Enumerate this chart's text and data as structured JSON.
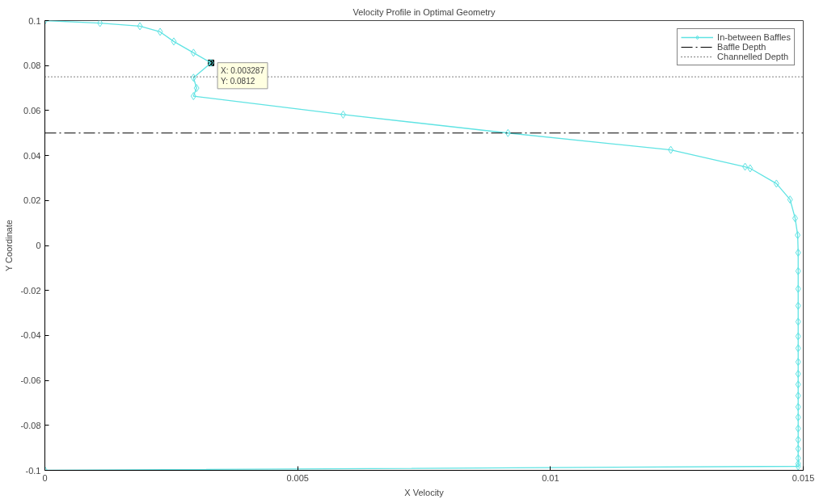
{
  "chart_data": {
    "type": "line",
    "title": "Velocity Profile in Optimal Geometry",
    "xlabel": "X Velocity",
    "ylabel": "Y Coordinate",
    "series": [
      {
        "name": "In-between Baffles",
        "color": "#5fe3e3",
        "x": [
          0,
          0.00109,
          0.00188,
          0.00228,
          0.00255,
          0.00294,
          0.003287,
          0.00294,
          0.003,
          0.00294,
          0.0059,
          0.00916,
          0.01238,
          0.01385,
          0.01395,
          0.01447,
          0.01474,
          0.01484,
          0.01489,
          0.0149,
          0.0149,
          0.0149,
          0.0149,
          0.0149,
          0.0149,
          0.0149,
          0.0149,
          0.0149,
          0.0149,
          0.0149,
          0.0149,
          0.0149,
          0.0149,
          0.0149,
          0.0149,
          0.0149,
          0.0149,
          0.0149,
          0
        ],
        "values": [
          0.1,
          0.0989,
          0.0975,
          0.095,
          0.0907,
          0.0857,
          0.0812,
          0.0746,
          0.07,
          0.0664,
          0.0582,
          0.05,
          0.0425,
          0.035,
          0.0343,
          0.0275,
          0.0204,
          0.0121,
          0.0046,
          -0.0032,
          -0.0114,
          -0.0193,
          -0.0268,
          -0.0339,
          -0.0404,
          -0.0457,
          -0.0518,
          -0.0571,
          -0.0618,
          -0.0668,
          -0.0718,
          -0.0764,
          -0.0814,
          -0.0864,
          -0.0904,
          -0.0946,
          -0.0971,
          -0.0982,
          -0.1
        ]
      }
    ],
    "ref_lines": [
      {
        "axis": "y",
        "value": 0.05,
        "label": "Baffle Depth",
        "color": "#000000",
        "line_style": "dashed"
      },
      {
        "axis": "y",
        "value": 0.075,
        "label": "Channelled Depth",
        "color": "#000000",
        "line_style": "dotted"
      }
    ],
    "annotations": [
      {
        "text": "X: 0.003287\nY: 0.0812",
        "x": 0.003287,
        "y": 0.0812
      }
    ],
    "xlim": [
      0,
      0.015
    ],
    "xticks": [
      0,
      0.005,
      0.01,
      0.015
    ],
    "ylim": [
      -0.1,
      0.1
    ],
    "yticks": [
      -0.1,
      -0.08,
      -0.06,
      -0.04,
      -0.02,
      0,
      0.02,
      0.04,
      0.06,
      0.08,
      0.1
    ],
    "grid": false,
    "legend": "top right",
    "marker": "diamond",
    "line_style": "solid"
  }
}
